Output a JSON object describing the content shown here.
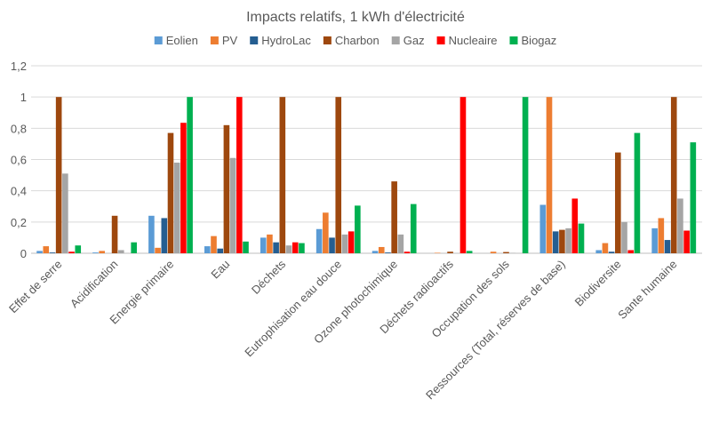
{
  "chart_data": {
    "type": "bar",
    "title": "Impacts relatifs, 1 kWh d'électricité",
    "xlabel": "",
    "ylabel": "",
    "ylim": [
      0,
      1.2
    ],
    "yticks": [
      "0",
      "0,2",
      "0,4",
      "0,6",
      "0,8",
      "1",
      "1,2"
    ],
    "grid": true,
    "legend": "top",
    "categories": [
      "Effet de serre",
      "Acidification",
      "Energie primaire",
      "Eau",
      "Déchets",
      "Eutrophisation eau douce",
      "Ozone photochimique",
      "Déchets radioactifs",
      "Occupation des sols",
      "Ressources (Total, réserves de base)",
      "Biodiversite",
      "Sante humaine"
    ],
    "series": [
      {
        "name": "Eolien",
        "color": "#5B9BD5",
        "values": [
          0.015,
          0.005,
          0.24,
          0.045,
          0.1,
          0.155,
          0.015,
          0,
          0,
          0.31,
          0.02,
          0.16
        ]
      },
      {
        "name": "PV",
        "color": "#ED7D31",
        "values": [
          0.045,
          0.015,
          0.035,
          0.11,
          0.12,
          0.26,
          0.04,
          0.003,
          0.01,
          1,
          0.065,
          0.225
        ]
      },
      {
        "name": "HydroLac",
        "color": "#255E91",
        "values": [
          0.005,
          0,
          0.225,
          0.03,
          0.07,
          0.1,
          0.005,
          0,
          0,
          0.14,
          0.01,
          0.085
        ]
      },
      {
        "name": "Charbon",
        "color": "#9E480E",
        "values": [
          1,
          0.24,
          0.77,
          0.82,
          1,
          1,
          0.46,
          0.01,
          0.008,
          0.15,
          0.645,
          1
        ]
      },
      {
        "name": "Gaz",
        "color": "#A5A5A5",
        "values": [
          0.51,
          0.02,
          0.58,
          0.61,
          0.05,
          0.12,
          0.12,
          0,
          0.002,
          0.16,
          0.2,
          0.35
        ]
      },
      {
        "name": "Nucleaire",
        "color": "#FF0000",
        "values": [
          0.01,
          0,
          0.835,
          1,
          0.07,
          0.14,
          0.01,
          1,
          0,
          0.35,
          0.02,
          0.145
        ]
      },
      {
        "name": "Biogaz",
        "color": "#00B050",
        "values": [
          0.05,
          0.07,
          1,
          0.075,
          0.065,
          0.305,
          0.315,
          0.015,
          1,
          0.19,
          0.77,
          0.71
        ]
      }
    ]
  }
}
